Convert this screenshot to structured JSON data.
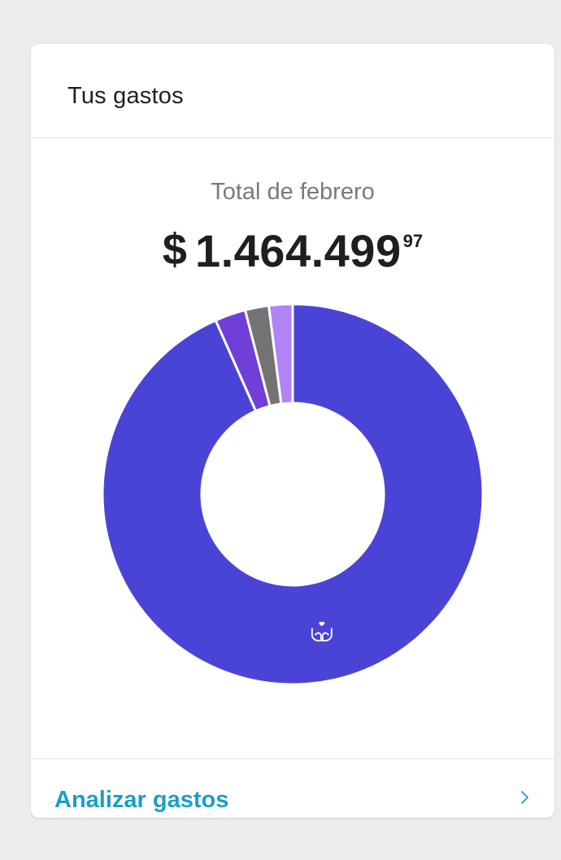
{
  "card": {
    "title": "Tus gastos",
    "total_label": "Total de febrero",
    "currency_symbol": "$",
    "total_integer": "1.464.499",
    "total_cents": "97"
  },
  "footer": {
    "link_label": "Analizar gastos",
    "chevron_icon": "chevron-right-icon"
  },
  "colors": {
    "accent_link": "#1a9ec9",
    "main_segment": "#4a44d6"
  },
  "chart_data": {
    "type": "pie",
    "variant": "donut",
    "title": "",
    "slices": [
      {
        "value": 92.8,
        "color": "#4a44d6",
        "icon": "hands-heart-icon"
      },
      {
        "value": 2.6,
        "color": "#6f3fd8"
      },
      {
        "value": 2.0,
        "color": "#737373"
      },
      {
        "value": 2.0,
        "color": "#b283f5"
      }
    ]
  }
}
